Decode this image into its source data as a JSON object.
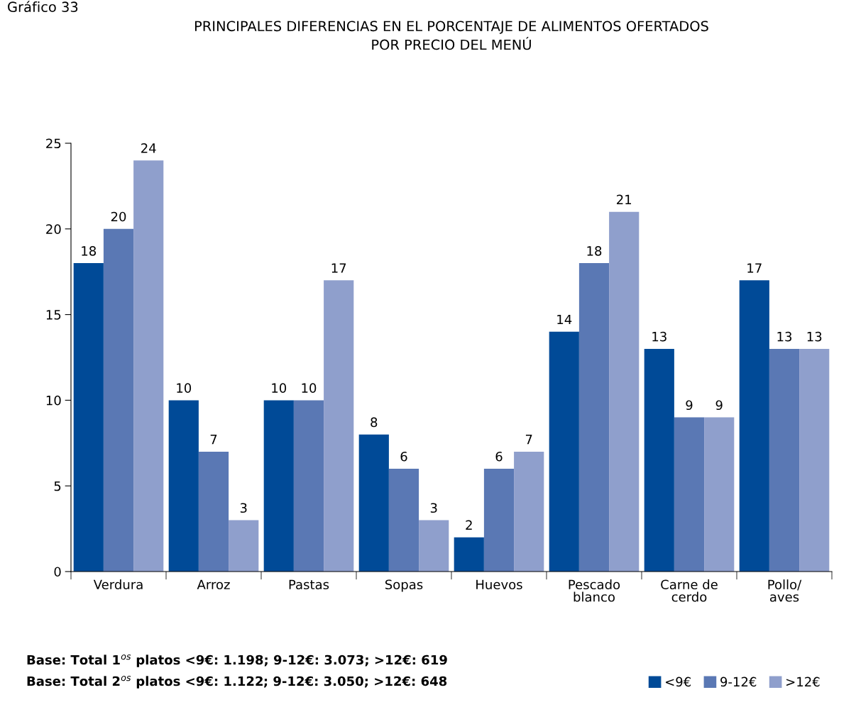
{
  "chart_data": {
    "type": "bar",
    "title": "PRINCIPALES DIFERENCIAS EN EL PORCENTAJE DE ALIMENTOS OFERTADOS\nPOR PRECIO DEL MENÚ",
    "categories": [
      "Verdura",
      "Arroz",
      "Pastas",
      "Sopas",
      "Huevos",
      "Pescado\nblanco",
      "Carne de\ncerdo",
      "Pollo/\naves"
    ],
    "series": [
      {
        "name": "<9€",
        "color": "#004a97",
        "values": [
          18,
          10,
          10,
          8,
          2,
          14,
          13,
          17
        ]
      },
      {
        "name": "9-12€",
        "color": "#5a78b4",
        "values": [
          20,
          7,
          10,
          6,
          6,
          18,
          9,
          13
        ]
      },
      {
        "name": ">12€",
        "color": "#8f9fcc",
        "values": [
          24,
          3,
          17,
          3,
          7,
          21,
          9,
          13
        ]
      }
    ],
    "ylim": [
      0,
      25
    ],
    "yticks": [
      0,
      5,
      10,
      15,
      20,
      25
    ],
    "grid": false,
    "data_labels": true,
    "legend": "bottom right",
    "annotations": [
      "Gráfico 33",
      "Base: Total 1$^{os}$ platos <9€: 1.198; 9-12€: 3.073; >12€: 619",
      "Base: Total 2$^{os}$ platos <9€: 1.122; 9-12€: 3.050; >12€: 648"
    ]
  }
}
